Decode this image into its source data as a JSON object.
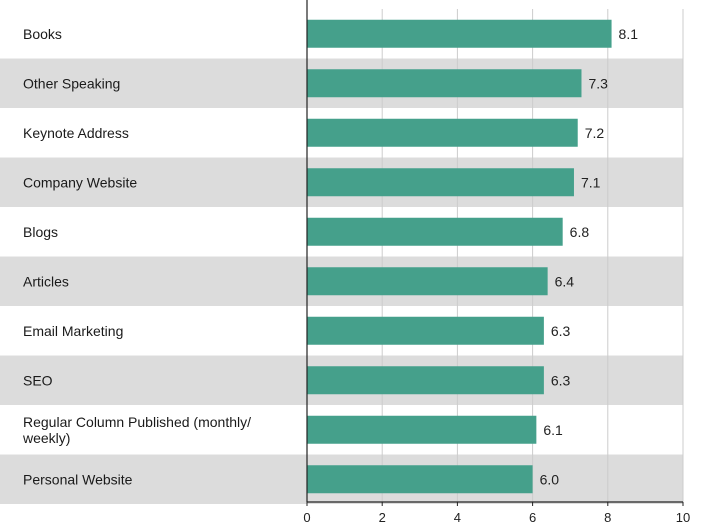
{
  "chart_data": {
    "type": "bar",
    "orientation": "horizontal",
    "categories": [
      "Books",
      "Other Speaking",
      "Keynote Address",
      "Company Website",
      "Blogs",
      "Articles",
      "Email Marketing",
      "SEO",
      "Regular Column Published (monthly/ weekly)",
      "Personal Website"
    ],
    "values": [
      8.1,
      7.3,
      7.2,
      7.1,
      6.8,
      6.4,
      6.3,
      6.3,
      6.1,
      6.0
    ],
    "value_labels": [
      "8.1",
      "7.3",
      "7.2",
      "7.1",
      "6.8",
      "6.4",
      "6.3",
      "6.3",
      "6.1",
      "6.0"
    ],
    "xlim": [
      0,
      10
    ],
    "x_ticks": [
      0,
      2,
      4,
      6,
      8,
      10
    ],
    "grid": "vertical",
    "bar_color": "#45a08b",
    "band_color": "#dcdcdc",
    "grid_color": "#cccccc",
    "axis_color": "#222222"
  }
}
